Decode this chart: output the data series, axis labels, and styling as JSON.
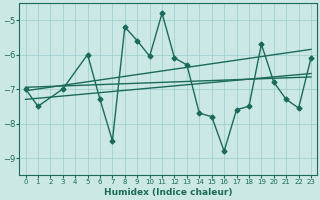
{
  "title": "",
  "xlabel": "Humidex (Indice chaleur)",
  "ylabel": "",
  "bg_color": "#cce8e4",
  "grid_color": "#99cccc",
  "line_color": "#1a6b5a",
  "xlim": [
    -0.5,
    23.5
  ],
  "ylim": [
    -9.5,
    -4.5
  ],
  "yticks": [
    -9,
    -8,
    -7,
    -6,
    -5
  ],
  "xticks": [
    0,
    1,
    2,
    3,
    4,
    5,
    6,
    7,
    8,
    9,
    10,
    11,
    12,
    13,
    14,
    15,
    16,
    17,
    18,
    19,
    20,
    21,
    22,
    23
  ],
  "main_x": [
    0,
    1,
    3,
    5,
    6,
    7,
    8,
    9,
    10,
    11,
    12,
    13,
    14,
    15,
    16,
    17,
    18,
    19,
    20,
    21,
    22,
    23
  ],
  "main_y": [
    -7.0,
    -7.5,
    -7.0,
    -6.0,
    -7.3,
    -8.5,
    -5.2,
    -5.6,
    -6.05,
    -4.8,
    -6.1,
    -6.3,
    -7.7,
    -7.8,
    -8.8,
    -7.6,
    -7.5,
    -5.7,
    -6.8,
    -7.3,
    -7.55,
    -6.1
  ],
  "trend1_x": [
    0,
    23
  ],
  "trend1_y": [
    -6.95,
    -6.65
  ],
  "trend2_x": [
    0,
    23
  ],
  "trend2_y": [
    -7.3,
    -6.55
  ],
  "trend3_x": [
    0,
    23
  ],
  "trend3_y": [
    -7.05,
    -5.85
  ],
  "marker_size": 2.5,
  "linewidth": 1.0
}
